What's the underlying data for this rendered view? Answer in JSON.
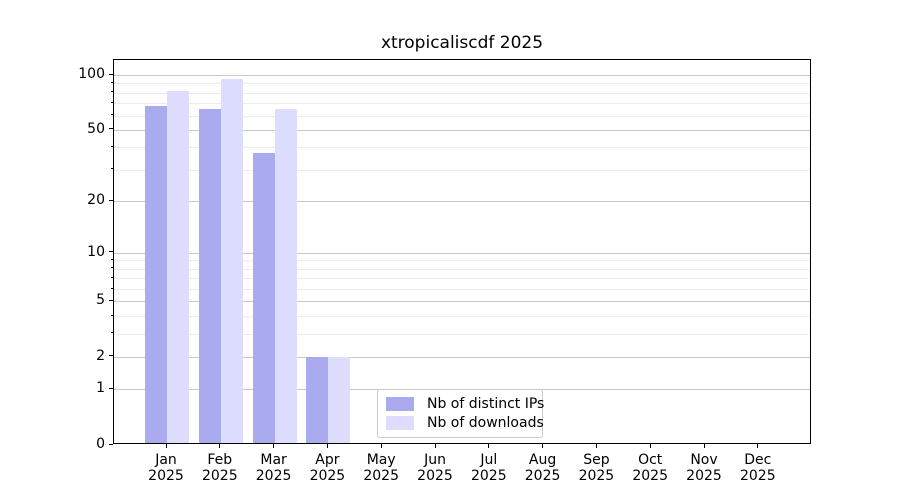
{
  "chart_data": {
    "type": "bar",
    "title": "xtropicaliscdf 2025",
    "categories": [
      "Jan",
      "Feb",
      "Mar",
      "Apr",
      "May",
      "Jun",
      "Jul",
      "Aug",
      "Sep",
      "Oct",
      "Nov",
      "Dec"
    ],
    "x_tick_second_line": "2025",
    "series": [
      {
        "name": "Nb of distinct IPs",
        "color": "#aaaaee",
        "values": [
          68,
          65,
          37,
          2,
          0,
          0,
          0,
          0,
          0,
          0,
          0,
          0
        ]
      },
      {
        "name": "Nb of downloads",
        "color": "#ddddff",
        "values": [
          82,
          95,
          65,
          2,
          0,
          0,
          0,
          0,
          0,
          0,
          0,
          0
        ]
      }
    ],
    "yscale": "log1p",
    "ylim": [
      0,
      121
    ],
    "y_major_ticks": [
      0,
      1,
      2,
      5,
      10,
      20,
      50,
      100
    ],
    "y_minor_ticks": [
      3,
      4,
      6,
      7,
      8,
      9,
      30,
      40,
      60,
      70,
      80,
      90
    ],
    "grid": true,
    "legend": {
      "entries": [
        "Nb of distinct IPs",
        "Nb of downloads"
      ],
      "position": "lower center"
    }
  },
  "colors": {
    "distinct_ips": "#aaaaee",
    "downloads": "#ddddff",
    "grid_major": "#c9c9c9",
    "grid_minor": "#ececec",
    "spine": "#000000",
    "legend_border": "#cccccc",
    "text": "#000000"
  }
}
